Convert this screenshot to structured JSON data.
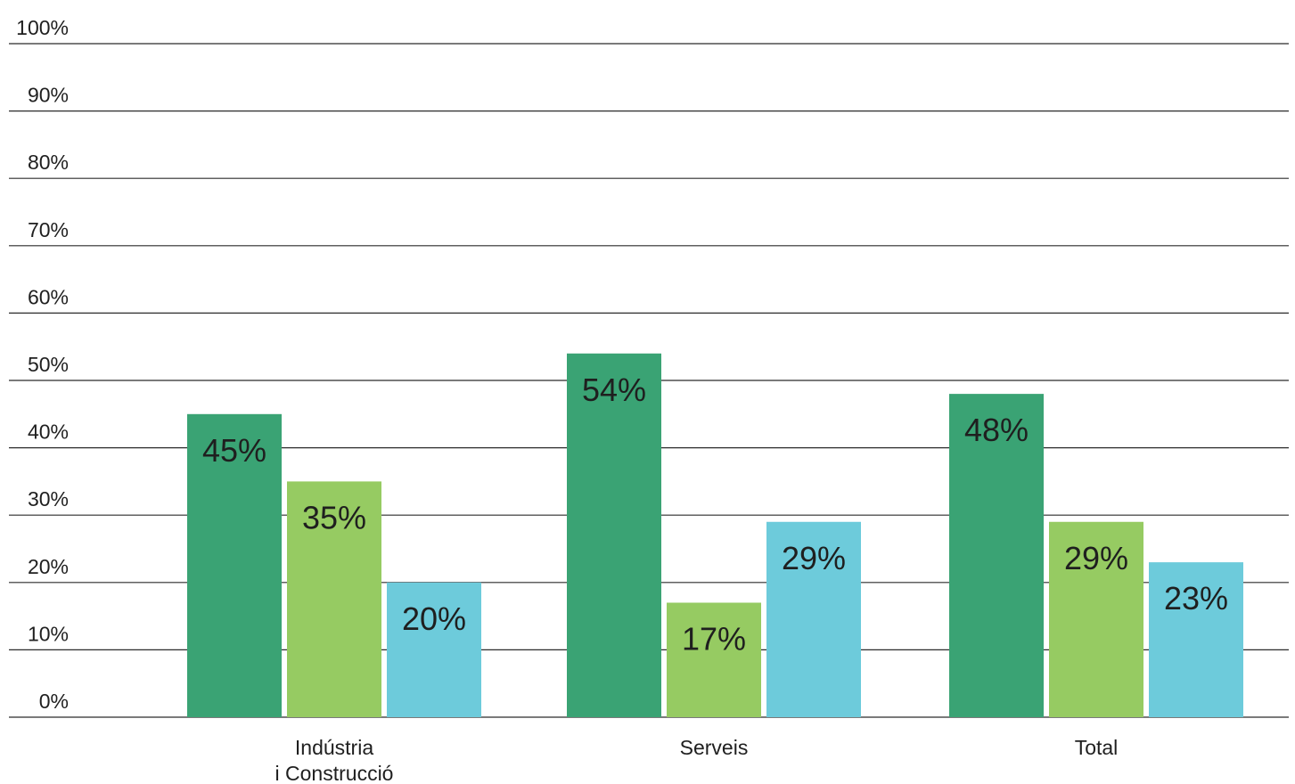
{
  "chart_data": {
    "type": "bar",
    "categories": [
      [
        "Indústria",
        "i Construcció"
      ],
      [
        "Serveis"
      ],
      [
        "Total"
      ]
    ],
    "series": [
      {
        "values": [
          45,
          54,
          48
        ],
        "value_labels": [
          "45%",
          "54%",
          "48%"
        ],
        "color": "#3aa374"
      },
      {
        "values": [
          35,
          17,
          29
        ],
        "value_labels": [
          "35%",
          "17%",
          "29%"
        ],
        "color": "#96cb62"
      },
      {
        "values": [
          20,
          29,
          23
        ],
        "value_labels": [
          "20%",
          "29%",
          "23%"
        ],
        "color": "#6dcbdb"
      }
    ],
    "y_ticks": [
      0,
      10,
      20,
      30,
      40,
      50,
      60,
      70,
      80,
      90,
      100
    ],
    "y_tick_labels": [
      "0%",
      "10%",
      "20%",
      "30%",
      "40%",
      "50%",
      "60%",
      "70%",
      "80%",
      "90%",
      "100%"
    ],
    "ylim": [
      0,
      100
    ],
    "grid": true,
    "legend": "none",
    "title": "",
    "xlabel": "",
    "ylabel": ""
  }
}
